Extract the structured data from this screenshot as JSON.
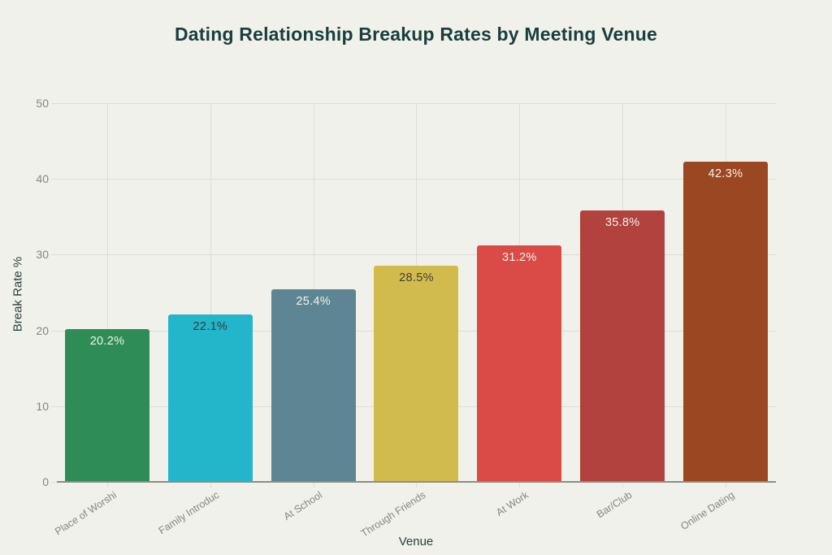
{
  "chart_data": {
    "type": "bar",
    "title": "Dating Relationship Breakup Rates by Meeting Venue",
    "xlabel": "Venue",
    "ylabel": "Break Rate %",
    "ylim": [
      0,
      50
    ],
    "yticks": [
      0,
      10,
      20,
      30,
      40,
      50
    ],
    "grid": true,
    "legend": false,
    "categories": [
      "Place of Worshi",
      "Family Introduc",
      "At School",
      "Through Friends",
      "At Work",
      "Bar/Club",
      "Online Dating"
    ],
    "values": [
      20.2,
      22.1,
      25.4,
      28.5,
      31.2,
      35.8,
      42.3
    ],
    "value_labels": [
      "20.2%",
      "22.1%",
      "25.4%",
      "28.5%",
      "31.2%",
      "35.8%",
      "42.3%"
    ],
    "bar_colors": [
      "#2e8d56",
      "#23b6cb",
      "#5e8593",
      "#d2bb4d",
      "#da4a47",
      "#b2423e",
      "#9b4722"
    ],
    "value_label_colors": [
      "#f2f3ec",
      "#343b35",
      "#f2f3ec",
      "#3b4038",
      "#f2f3ec",
      "#f2f3ec",
      "#f2f3ec"
    ],
    "colors": {
      "background": "#f0f1ea",
      "title": "#193e3e",
      "axis_label": "#25413e",
      "tick_label": "#85877f",
      "gridline": "#dcddd5",
      "axis_line": "#8c8e86"
    }
  }
}
